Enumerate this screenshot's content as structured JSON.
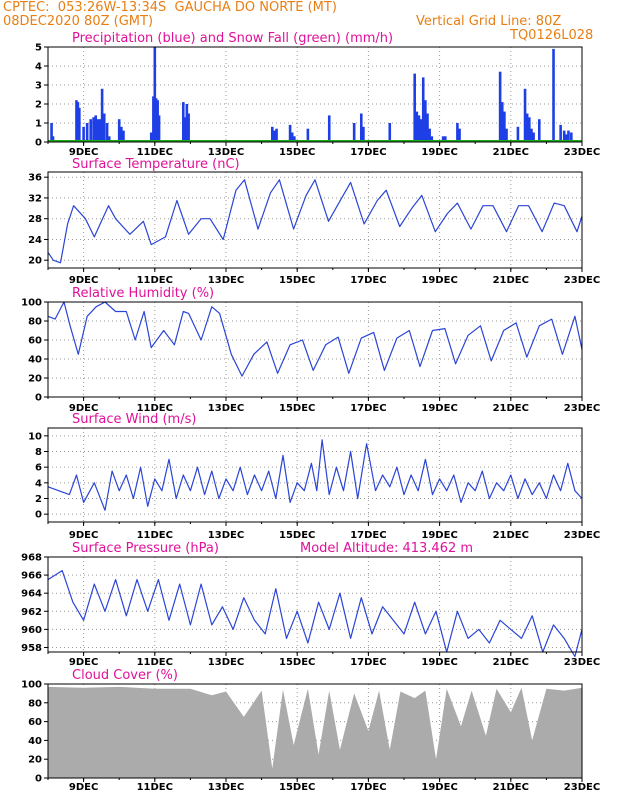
{
  "header": {
    "line1": "CPTEC:  053:26W-13:34S  GAUCHA DO NORTE (MT)",
    "line2_left": "08DEC2020 80Z (GMT)",
    "line2_right": "Vertical Grid Line: 80Z",
    "line3_right": "TQ0126L028"
  },
  "colors": {
    "header_text": "#e87f14",
    "panel_title": "#e0119a",
    "precip": "#1f3fe6",
    "snow": "#1aa81a",
    "line": "#2b45d6",
    "cloud": "#ababab",
    "grid": "#9a9a9a"
  },
  "chart_data": [
    {
      "id": "precip",
      "type": "bar",
      "title": "Precipitation (blue) and Snow Fall (green) (mm/h)",
      "ylim": [
        0,
        5
      ],
      "yticks": [
        0,
        1,
        2,
        3,
        4,
        5
      ],
      "x_tick_labels": [
        "9DEC",
        "11DEC",
        "13DEC",
        "15DEC",
        "17DEC",
        "19DEC",
        "21DEC",
        "23DEC"
      ],
      "series": [
        {
          "name": "Precipitation",
          "color": "#1f3fe6",
          "x": [
            8.1,
            8.14,
            8.8,
            8.84,
            8.88,
            9.0,
            9.1,
            9.2,
            9.28,
            9.34,
            9.4,
            9.46,
            9.52,
            9.58,
            9.66,
            9.72,
            10.0,
            10.06,
            10.12,
            10.9,
            10.96,
            11.0,
            11.04,
            11.08,
            11.12,
            11.8,
            11.85,
            11.9,
            11.95,
            14.3,
            14.36,
            14.42,
            14.8,
            14.86,
            14.92,
            15.3,
            15.9,
            16.6,
            16.8,
            16.86,
            17.6,
            18.3,
            18.36,
            18.42,
            18.48,
            18.54,
            18.6,
            18.66,
            18.72,
            18.78,
            19.1,
            19.16,
            19.5,
            19.56,
            20.7,
            20.76,
            20.82,
            20.88,
            21.2,
            21.4,
            21.46,
            21.52,
            21.58,
            21.64,
            21.8,
            22.2,
            22.4,
            22.5,
            22.56,
            22.62,
            22.7
          ],
          "values": [
            1.0,
            0.3,
            2.2,
            2.1,
            1.8,
            0.8,
            1.0,
            1.2,
            1.3,
            1.4,
            1.2,
            1.2,
            2.8,
            1.5,
            1.0,
            0.3,
            1.2,
            0.8,
            0.6,
            0.5,
            2.4,
            5.0,
            2.3,
            2.2,
            1.4,
            2.1,
            1.3,
            2.0,
            1.5,
            0.8,
            0.6,
            0.7,
            0.9,
            0.5,
            0.3,
            0.7,
            1.4,
            1.0,
            1.5,
            0.8,
            1.0,
            3.6,
            1.6,
            1.4,
            1.2,
            3.4,
            2.2,
            1.5,
            0.7,
            0.3,
            0.3,
            0.3,
            1.0,
            0.7,
            3.7,
            2.1,
            1.6,
            0.7,
            0.8,
            2.8,
            1.5,
            1.3,
            0.7,
            0.5,
            1.2,
            4.9,
            0.9,
            0.6,
            0.4,
            0.6,
            0.5
          ]
        },
        {
          "name": "Snow Fall",
          "color": "#1aa81a",
          "x": [
            8.0,
            23.0
          ],
          "values": [
            0,
            0
          ]
        }
      ]
    },
    {
      "id": "temperature",
      "type": "line",
      "title": "Surface Temperature (nC)",
      "ylim": [
        18.5,
        37
      ],
      "yticks": [
        20,
        24,
        28,
        32,
        36
      ],
      "x_tick_labels": [
        "9DEC",
        "11DEC",
        "13DEC",
        "15DEC",
        "17DEC",
        "19DEC",
        "21DEC",
        "23DEC"
      ],
      "x": [
        8.0,
        8.15,
        8.35,
        8.55,
        8.72,
        9.05,
        9.3,
        9.7,
        9.9,
        10.3,
        10.68,
        10.9,
        11.3,
        11.62,
        11.95,
        12.3,
        12.55,
        12.92,
        13.28,
        13.52,
        13.9,
        14.25,
        14.5,
        14.9,
        15.25,
        15.5,
        15.88,
        16.25,
        16.5,
        16.88,
        17.25,
        17.5,
        17.88,
        18.22,
        18.5,
        18.88,
        19.22,
        19.5,
        19.88,
        20.22,
        20.5,
        20.88,
        21.22,
        21.5,
        21.88,
        22.22,
        22.5,
        22.86,
        23.0
      ],
      "values": [
        21.5,
        20.0,
        19.5,
        27.0,
        30.5,
        28.0,
        24.5,
        30.5,
        28.0,
        25.0,
        27.5,
        23.0,
        24.5,
        31.5,
        25.0,
        28.0,
        28.0,
        24.0,
        33.5,
        35.5,
        26.0,
        33.0,
        35.5,
        26.0,
        32.5,
        35.5,
        27.5,
        32.0,
        35.0,
        27.0,
        31.5,
        33.5,
        26.5,
        30.0,
        32.5,
        25.5,
        29.0,
        31.0,
        26.0,
        30.5,
        30.5,
        25.5,
        30.5,
        30.5,
        25.5,
        31.0,
        30.5,
        25.5,
        28.5
      ]
    },
    {
      "id": "humidity",
      "type": "line",
      "title": "Relative Humidity (%)",
      "ylim": [
        0,
        100
      ],
      "yticks": [
        0,
        20,
        40,
        60,
        80,
        100
      ],
      "x_tick_labels": [
        "9DEC",
        "11DEC",
        "13DEC",
        "15DEC",
        "17DEC",
        "19DEC",
        "21DEC",
        "23DEC"
      ],
      "x": [
        8.0,
        8.2,
        8.45,
        8.62,
        8.85,
        9.1,
        9.35,
        9.6,
        9.9,
        10.2,
        10.45,
        10.7,
        10.9,
        11.25,
        11.55,
        11.8,
        11.95,
        12.3,
        12.6,
        12.82,
        13.15,
        13.45,
        13.78,
        14.15,
        14.45,
        14.8,
        15.15,
        15.45,
        15.8,
        16.15,
        16.45,
        16.8,
        17.15,
        17.45,
        17.8,
        18.15,
        18.45,
        18.8,
        19.15,
        19.45,
        19.8,
        20.15,
        20.45,
        20.8,
        21.15,
        21.45,
        21.8,
        22.15,
        22.45,
        22.8,
        23.0
      ],
      "values": [
        85.0,
        82.0,
        100.0,
        75.0,
        45.0,
        85.0,
        95.0,
        100.0,
        90.0,
        90.0,
        60.0,
        90.0,
        52.0,
        70.0,
        55.0,
        90.0,
        88.0,
        60.0,
        95.0,
        88.0,
        45.0,
        22.0,
        45.0,
        58.0,
        25.0,
        55.0,
        60.0,
        28.0,
        55.0,
        63.0,
        25.0,
        62.0,
        68.0,
        28.0,
        62.0,
        70.0,
        32.0,
        70.0,
        72.0,
        35.0,
        65.0,
        75.0,
        38.0,
        70.0,
        78.0,
        42.0,
        75.0,
        82.0,
        45.0,
        85.0,
        50.0
      ]
    },
    {
      "id": "wind",
      "type": "line",
      "title": "Surface Wind (m/s)",
      "ylim": [
        -1,
        11
      ],
      "yticks": [
        0,
        2,
        4,
        6,
        8,
        10
      ],
      "x_tick_labels": [
        "9DEC",
        "11DEC",
        "13DEC",
        "15DEC",
        "17DEC",
        "19DEC",
        "21DEC",
        "23DEC"
      ],
      "x": [
        8.0,
        8.3,
        8.6,
        8.8,
        9.0,
        9.3,
        9.6,
        9.8,
        10.0,
        10.2,
        10.4,
        10.6,
        10.8,
        11.0,
        11.2,
        11.4,
        11.6,
        11.8,
        12.0,
        12.2,
        12.4,
        12.6,
        12.8,
        13.0,
        13.2,
        13.4,
        13.6,
        13.8,
        14.0,
        14.2,
        14.4,
        14.6,
        14.8,
        15.0,
        15.2,
        15.4,
        15.55,
        15.7,
        15.9,
        16.1,
        16.3,
        16.5,
        16.7,
        16.95,
        17.2,
        17.4,
        17.6,
        17.8,
        18.0,
        18.2,
        18.4,
        18.6,
        18.8,
        19.0,
        19.2,
        19.4,
        19.6,
        19.8,
        20.0,
        20.2,
        20.4,
        20.6,
        20.8,
        21.0,
        21.2,
        21.4,
        21.6,
        21.8,
        22.0,
        22.2,
        22.4,
        22.6,
        22.8,
        23.0
      ],
      "values": [
        3.5,
        3.0,
        2.5,
        5.0,
        1.5,
        4.0,
        0.5,
        5.5,
        3.0,
        5.0,
        2.0,
        6.0,
        1.0,
        4.5,
        3.0,
        7.0,
        2.0,
        5.0,
        3.0,
        6.0,
        2.5,
        5.5,
        2.0,
        4.5,
        3.0,
        6.0,
        2.5,
        5.0,
        3.0,
        5.5,
        2.0,
        7.5,
        1.5,
        4.0,
        3.0,
        6.5,
        3.0,
        9.5,
        2.5,
        6.0,
        3.0,
        8.0,
        2.0,
        9.0,
        3.0,
        5.0,
        3.5,
        6.0,
        2.5,
        5.0,
        3.0,
        7.0,
        2.5,
        4.5,
        3.0,
        5.0,
        1.5,
        4.0,
        3.0,
        5.5,
        2.0,
        4.0,
        3.0,
        5.0,
        2.0,
        4.5,
        2.5,
        4.0,
        2.0,
        5.0,
        3.0,
        6.5,
        3.0,
        2.0
      ]
    },
    {
      "id": "pressure",
      "type": "line",
      "title": "Surface Pressure (hPa)",
      "annotation": "Model Altitude: 413.462 m",
      "ylim": [
        957.5,
        968
      ],
      "yticks": [
        958,
        960,
        962,
        964,
        966,
        968
      ],
      "x_tick_labels": [
        "9DEC",
        "11DEC",
        "13DEC",
        "15DEC",
        "17DEC",
        "19DEC",
        "21DEC",
        "23DEC"
      ],
      "x": [
        8.0,
        8.2,
        8.4,
        8.7,
        9.0,
        9.3,
        9.6,
        9.9,
        10.2,
        10.5,
        10.8,
        11.1,
        11.4,
        11.7,
        12.0,
        12.3,
        12.6,
        12.9,
        13.2,
        13.5,
        13.8,
        14.1,
        14.4,
        14.7,
        15.0,
        15.3,
        15.6,
        15.9,
        16.2,
        16.5,
        16.8,
        17.1,
        17.4,
        17.7,
        18.0,
        18.3,
        18.6,
        18.9,
        19.2,
        19.5,
        19.8,
        20.1,
        20.4,
        20.7,
        21.0,
        21.3,
        21.6,
        21.9,
        22.2,
        22.5,
        22.8,
        23.0
      ],
      "values": [
        965.5,
        966.0,
        966.5,
        963.0,
        961.0,
        965.0,
        962.0,
        965.5,
        961.5,
        965.5,
        962.0,
        965.5,
        961.0,
        965.0,
        960.5,
        965.0,
        960.5,
        962.5,
        960.0,
        963.5,
        961.0,
        959.5,
        964.5,
        959.0,
        962.0,
        958.5,
        963.0,
        960.0,
        964.0,
        959.0,
        963.5,
        959.5,
        962.5,
        961.0,
        959.5,
        963.0,
        959.5,
        962.0,
        957.5,
        962.0,
        959.0,
        960.0,
        958.5,
        961.0,
        960.0,
        959.0,
        961.5,
        957.5,
        960.5,
        959.0,
        957.0,
        960.0
      ]
    },
    {
      "id": "cloud",
      "type": "area",
      "title": "Cloud Cover (%)",
      "ylim": [
        0,
        100
      ],
      "yticks": [
        0,
        20,
        40,
        60,
        80,
        100
      ],
      "x_tick_labels": [
        "9DEC",
        "11DEC",
        "13DEC",
        "15DEC",
        "17DEC",
        "19DEC",
        "21DEC",
        "23DEC"
      ],
      "x": [
        8.0,
        9.0,
        10.0,
        11.0,
        12.0,
        12.6,
        13.0,
        13.5,
        14.0,
        14.3,
        14.6,
        14.9,
        15.3,
        15.6,
        15.9,
        16.2,
        16.6,
        17.0,
        17.3,
        17.6,
        17.9,
        18.3,
        18.6,
        18.9,
        19.2,
        19.6,
        19.9,
        20.3,
        20.6,
        21.0,
        21.3,
        21.6,
        22.0,
        22.5,
        23.0
      ],
      "values": [
        97,
        96,
        97,
        95,
        95,
        88,
        92,
        65,
        93,
        10,
        94,
        35,
        95,
        25,
        93,
        30,
        90,
        50,
        93,
        30,
        92,
        85,
        93,
        20,
        95,
        55,
        93,
        45,
        95,
        70,
        96,
        40,
        95,
        93,
        96
      ]
    }
  ]
}
